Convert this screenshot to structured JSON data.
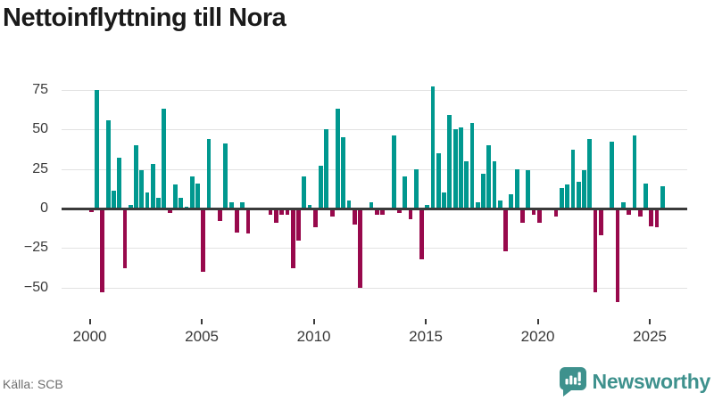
{
  "title": "Nettoinflyttning till Nora",
  "source": "Källa: SCB",
  "logo": {
    "text": "Newsworthy"
  },
  "chart_data": {
    "type": "bar",
    "title": "Nettoinflyttning till Nora",
    "frequency": "quarterly",
    "start_year": 2000,
    "start_quarter": 1,
    "ylabel": "",
    "xlabel": "",
    "ylim": [
      -62,
      80
    ],
    "grid": true,
    "y_ticks": [
      75,
      50,
      25,
      0,
      -25,
      -50
    ],
    "x_tick_labels": [
      "2000",
      "2005",
      "2010",
      "2015",
      "2020",
      "2025"
    ],
    "colors": {
      "positive": "#00988f",
      "negative": "#98094c"
    },
    "series": [
      {
        "name": "Nettoinflyttning",
        "values": [
          -2,
          75,
          -53,
          56,
          11,
          32,
          -38,
          2,
          40,
          24,
          10,
          28,
          7,
          63,
          -3,
          15,
          7,
          1,
          20,
          16,
          -40,
          44,
          0,
          -8,
          41,
          4,
          -15,
          4,
          -16,
          0,
          0,
          0,
          -4,
          -9,
          -4,
          -4,
          -38,
          -20,
          20,
          2,
          -12,
          27,
          50,
          -5,
          63,
          45,
          5,
          -10,
          -50,
          0,
          4,
          -4,
          -4,
          0,
          46,
          -3,
          20,
          -7,
          25,
          -32,
          2,
          77,
          35,
          10,
          59,
          50,
          51,
          30,
          54,
          4,
          22,
          40,
          30,
          5,
          -27,
          9,
          25,
          -9,
          24,
          -4,
          -9,
          0,
          0,
          -5,
          13,
          15,
          37,
          17,
          24,
          44,
          -53,
          -17,
          0,
          42,
          -59,
          4,
          -4,
          46,
          -5,
          16,
          -11,
          -12,
          14
        ]
      }
    ]
  }
}
